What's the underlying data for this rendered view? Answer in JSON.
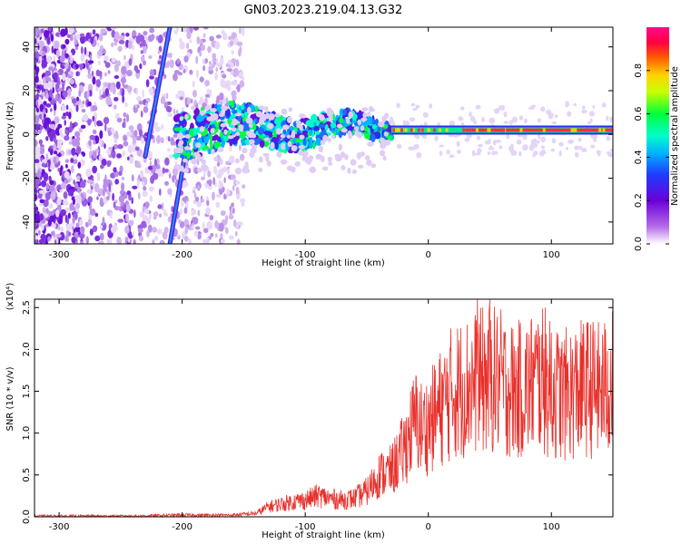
{
  "title": "GN03.2023.219.04.13.G32",
  "chart_data": [
    {
      "type": "heatmap",
      "xlabel": "Height of straight line (km)",
      "ylabel": "Frequency (Hz)",
      "xlim": [
        -320,
        150
      ],
      "ylim": [
        -50,
        49
      ],
      "xticks": [
        -300,
        -200,
        -100,
        0,
        100
      ],
      "yticks": [
        -40,
        -20,
        0,
        20,
        40
      ],
      "features": [
        {
          "kind": "noise",
          "x": [
            -320,
            -150
          ],
          "y": [
            -50,
            49
          ]
        },
        {
          "kind": "diagonal-line",
          "x": [
            -230,
            -210
          ],
          "y": [
            -10,
            49
          ]
        },
        {
          "kind": "diagonal-line",
          "x": [
            -210,
            -195
          ],
          "y": [
            -50,
            0
          ]
        },
        {
          "kind": "band",
          "x": [
            -205,
            -30
          ],
          "y": [
            -5,
            10
          ]
        },
        {
          "kind": "line",
          "x": [
            -30,
            150
          ],
          "y": [
            1,
            3
          ]
        }
      ],
      "colorbar": {
        "label": "Normalized spectral amplitude",
        "range": [
          0,
          1
        ],
        "ticks": [
          0.0,
          0.2,
          0.4,
          0.6,
          0.8
        ],
        "tick_labels": [
          "0.0",
          "0.2",
          "0.4",
          "0.6",
          "0.8"
        ],
        "colormap": "rainbow (white-purple-blue-cyan-green-yellow-red-magenta)"
      },
      "grid": false
    },
    {
      "type": "line",
      "xlabel": "Height of straight line (km)",
      "ylabel": "SNR (10 * v/v)",
      "y_multiplier": "(x10⁴)",
      "xlim": [
        -320,
        150
      ],
      "ylim": [
        0,
        2.6
      ],
      "xticks": [
        -300,
        -200,
        -100,
        0,
        100
      ],
      "yticks": [
        0.0,
        0.5,
        1.0,
        1.5,
        2.0,
        2.5
      ],
      "ytick_labels": [
        "0.0",
        "0.5",
        "1.0",
        "1.5",
        "2.0",
        "2.5"
      ],
      "color": "#e8312c",
      "series": [
        {
          "x": [
            -320,
            -280,
            -240,
            -200,
            -160,
            -140,
            -130,
            -120,
            -110,
            -100,
            -90,
            -80,
            -70,
            -60,
            -50,
            -40,
            -30,
            -20,
            -15,
            -10,
            -5,
            0,
            10,
            20,
            30,
            40,
            50,
            60,
            70,
            80,
            90,
            100,
            110,
            120,
            130,
            140,
            150
          ],
          "y": [
            0.01,
            0.01,
            0.01,
            0.02,
            0.02,
            0.04,
            0.12,
            0.15,
            0.18,
            0.2,
            0.25,
            0.22,
            0.2,
            0.22,
            0.3,
            0.5,
            0.55,
            0.8,
            1.0,
            1.15,
            1.05,
            1.1,
            1.3,
            1.5,
            1.55,
            1.6,
            1.65,
            1.6,
            1.5,
            1.55,
            1.65,
            1.5,
            1.45,
            1.5,
            1.55,
            1.5,
            1.6
          ],
          "peaks": [
            {
              "x": 40,
              "y": 2.6
            },
            {
              "x": 50,
              "y": 2.6
            },
            {
              "x": 95,
              "y": 2.5
            },
            {
              "x": 100,
              "y": 2.2
            }
          ]
        }
      ],
      "grid": false
    }
  ]
}
